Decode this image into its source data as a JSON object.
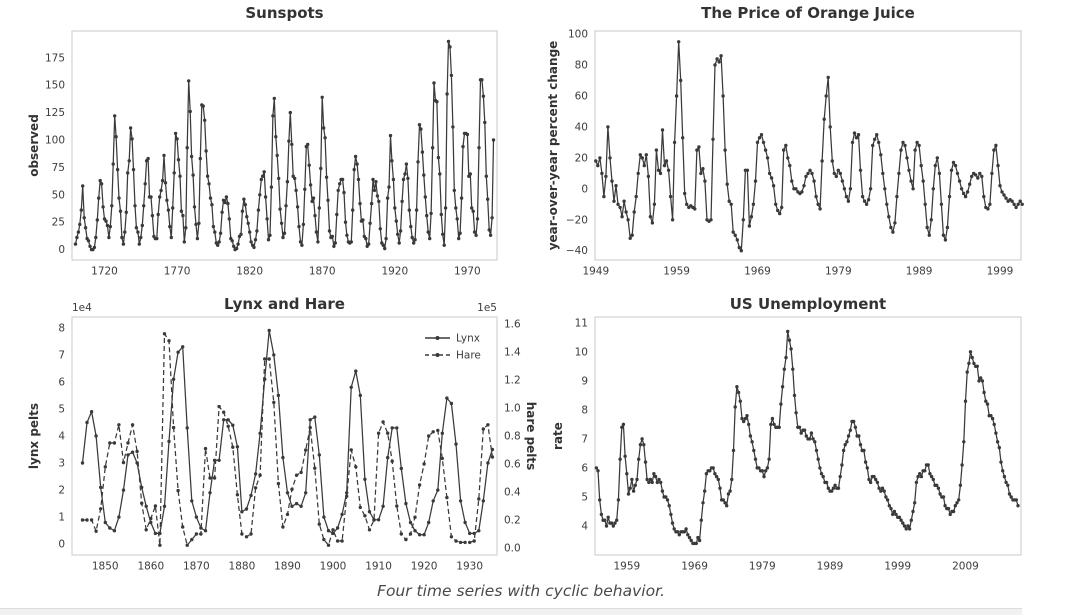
{
  "figure": {
    "caption": "Four time series with cyclic behavior."
  },
  "style": {
    "line_color": "#3a3a3a",
    "spine_color": "#c9c9c9",
    "tick_label_color": "#3d3d3d",
    "label_color": "#333333",
    "caption_color": "#4a4a4a",
    "background": "#ffffff"
  },
  "chart_data": [
    {
      "id": "sunspots",
      "type": "line",
      "title": "Sunspots",
      "xlabel": "",
      "ylabel": "observed",
      "grid": false,
      "legend": null,
      "xlim": [
        1697.6,
        1990.4
      ],
      "ylim": [
        -9.5,
        199.5
      ],
      "xticks": [
        1720,
        1770,
        1820,
        1870,
        1920,
        1970
      ],
      "yticks": [
        0,
        25,
        50,
        75,
        100,
        125,
        150,
        175
      ],
      "series": [
        {
          "name": "observed",
          "style": "solid",
          "axis": "left",
          "x0": 1700,
          "dx": 1,
          "values": [
            5,
            11,
            16,
            23,
            36,
            58,
            29,
            20,
            10,
            8,
            3,
            0,
            0,
            2,
            11,
            27,
            47,
            63,
            60,
            39,
            28,
            26,
            22,
            11,
            21,
            40,
            78,
            122,
            103,
            73,
            47,
            35,
            11,
            5,
            16,
            34,
            70,
            81,
            111,
            101,
            73,
            40,
            20,
            16,
            5,
            11,
            22,
            40,
            60,
            81,
            83,
            48,
            48,
            31,
            12,
            10,
            10,
            32,
            48,
            54,
            63,
            86,
            61,
            45,
            36,
            21,
            11,
            38,
            70,
            106,
            101,
            82,
            67,
            35,
            31,
            7,
            20,
            93,
            154,
            126,
            85,
            68,
            39,
            23,
            10,
            24,
            83,
            132,
            131,
            118,
            90,
            67,
            60,
            47,
            41,
            21,
            16,
            6,
            4,
            7,
            15,
            34,
            45,
            43,
            48,
            42,
            28,
            10,
            8,
            3,
            0,
            1,
            5,
            12,
            14,
            35,
            46,
            41,
            30,
            24,
            16,
            7,
            4,
            2,
            9,
            17,
            36,
            50,
            64,
            67,
            71,
            48,
            28,
            9,
            13,
            57,
            122,
            138,
            103,
            86,
            65,
            37,
            24,
            11,
            15,
            40,
            62,
            99,
            125,
            96,
            67,
            65,
            54,
            39,
            21,
            7,
            4,
            23,
            55,
            94,
            96,
            77,
            59,
            44,
            47,
            31,
            16,
            7,
            38,
            74,
            139,
            111,
            102,
            66,
            45,
            17,
            11,
            12,
            3,
            6,
            32,
            54,
            60,
            64,
            64,
            52,
            25,
            13,
            7,
            6,
            7,
            36,
            73,
            85,
            78,
            64,
            42,
            26,
            27,
            12,
            10,
            3,
            5,
            24,
            42,
            64,
            54,
            62,
            49,
            44,
            19,
            6,
            4,
            1,
            10,
            47,
            57,
            104,
            81,
            64,
            38,
            26,
            14,
            6,
            17,
            44,
            64,
            69,
            78,
            65,
            36,
            21,
            11,
            6,
            9,
            36,
            80,
            114,
            110,
            89,
            68,
            48,
            31,
            16,
            10,
            33,
            93,
            152,
            136,
            135,
            84,
            69,
            32,
            14,
            4,
            38,
            142,
            190,
            185,
            159,
            112,
            54,
            38,
            28,
            10,
            15,
            47,
            94,
            106,
            106,
            105,
            67,
            69,
            38,
            35,
            16,
            13,
            28,
            93,
            155,
            155,
            140,
            116,
            67,
            46,
            18,
            13,
            29,
            100
          ]
        }
      ]
    },
    {
      "id": "orange-juice",
      "type": "line",
      "title": "The Price of Orange Juice",
      "xlabel": "",
      "ylabel": "year-over-year percent change",
      "grid": false,
      "legend": null,
      "xlim": [
        1948.9,
        2001.6
      ],
      "ylim": [
        -46,
        102
      ],
      "xticks": [
        1949,
        1959,
        1969,
        1979,
        1989,
        1999
      ],
      "yticks": [
        -40,
        -20,
        0,
        20,
        40,
        60,
        80,
        100
      ],
      "series": [
        {
          "name": "yoy-percent-change",
          "style": "solid",
          "axis": "left",
          "x0": 1949,
          "dx": 0.25,
          "values": [
            18,
            15,
            20,
            10,
            -5,
            8,
            40,
            20,
            5,
            -8,
            2,
            -10,
            -12,
            -18,
            -8,
            -15,
            -20,
            -32,
            -30,
            -15,
            -5,
            10,
            22,
            20,
            15,
            22,
            8,
            -18,
            -22,
            -10,
            25,
            12,
            10,
            38,
            15,
            18,
            12,
            -5,
            -20,
            30,
            60,
            95,
            70,
            33,
            -3,
            -10,
            -12,
            -11,
            -12,
            -13,
            25,
            27,
            10,
            13,
            5,
            -20,
            -21,
            -20,
            32,
            80,
            84,
            82,
            86,
            60,
            25,
            3,
            -8,
            -10,
            -28,
            -30,
            -33,
            -38,
            -40,
            -20,
            12,
            12,
            -24,
            -18,
            -10,
            5,
            30,
            33,
            35,
            30,
            25,
            20,
            10,
            7,
            2,
            -10,
            -14,
            -16,
            -12,
            25,
            28,
            20,
            15,
            5,
            0,
            0,
            -2,
            -3,
            -2,
            2,
            8,
            10,
            12,
            10,
            5,
            -5,
            -10,
            -13,
            18,
            45,
            60,
            72,
            40,
            18,
            10,
            8,
            12,
            10,
            5,
            0,
            -5,
            -8,
            0,
            30,
            36,
            33,
            35,
            12,
            -5,
            -8,
            -10,
            -7,
            0,
            28,
            32,
            35,
            30,
            22,
            10,
            0,
            -10,
            -18,
            -25,
            -28,
            -22,
            -5,
            10,
            25,
            30,
            28,
            20,
            12,
            5,
            0,
            25,
            30,
            28,
            15,
            5,
            -10,
            -25,
            -30,
            -20,
            0,
            15,
            20,
            10,
            -10,
            -30,
            -33,
            -25,
            -5,
            12,
            17,
            15,
            10,
            5,
            0,
            -3,
            -5,
            -2,
            3,
            8,
            10,
            9,
            7,
            10,
            8,
            -5,
            -12,
            -13,
            -10,
            10,
            25,
            28,
            15,
            2,
            -2,
            -4,
            -6,
            -8,
            -7,
            -8,
            -10,
            -12,
            -10,
            -8,
            -10
          ]
        }
      ]
    },
    {
      "id": "lynx-hare",
      "type": "line",
      "title": "Lynx and Hare",
      "xlabel": "",
      "ylabel": "lynx pelts",
      "ylabel_right": "hare pelts",
      "offset_left": "1e4",
      "offset_right": "1e5",
      "grid": false,
      "legend": {
        "loc": "upper right",
        "items": [
          {
            "label": "Lynx",
            "style": "solid"
          },
          {
            "label": "Hare",
            "style": "dashed"
          }
        ]
      },
      "xlim": [
        1842.7,
        1936.0
      ],
      "ylim": [
        -0.4,
        8.4
      ],
      "ylim_right": [
        -0.05,
        1.65
      ],
      "xticks": [
        1850,
        1860,
        1870,
        1880,
        1890,
        1900,
        1910,
        1920,
        1930
      ],
      "yticks": [
        0,
        1,
        2,
        3,
        4,
        5,
        6,
        7,
        8
      ],
      "yticks_right": [
        0.0,
        0.2,
        0.4,
        0.6,
        0.8,
        1.0,
        1.2,
        1.4,
        1.6
      ],
      "yticks_right_labels": [
        "0.0",
        "0.2",
        "0.4",
        "0.6",
        "0.8",
        "1.0",
        "1.2",
        "1.4",
        "1.6"
      ],
      "series": [
        {
          "name": "Lynx",
          "style": "solid",
          "axis": "left",
          "x0": 1845,
          "dx": 1,
          "values": [
            3.0,
            4.5,
            4.9,
            4.0,
            2.1,
            0.8,
            0.6,
            0.5,
            1.0,
            2.0,
            3.3,
            3.4,
            3.0,
            2.1,
            1.4,
            0.8,
            0.4,
            0.4,
            1.4,
            3.8,
            6.1,
            7.1,
            7.3,
            4.3,
            1.6,
            1.0,
            0.6,
            0.5,
            1.9,
            3.1,
            3.1,
            4.6,
            4.6,
            4.4,
            3.6,
            1.2,
            1.3,
            1.8,
            2.6,
            4.1,
            6.1,
            7.9,
            7.0,
            5.5,
            3.2,
            1.9,
            1.4,
            1.5,
            1.4,
            1.9,
            4.6,
            4.7,
            3.3,
            1.0,
            0.5,
            0.4,
            0.6,
            1.1,
            1.9,
            5.8,
            6.4,
            5.5,
            2.4,
            1.2,
            0.9,
            0.9,
            1.4,
            3.2,
            4.3,
            4.3,
            2.8,
            1.5,
            0.8,
            0.5,
            0.35,
            0.35,
            0.8,
            1.6,
            2.0,
            4.1,
            5.4,
            5.2,
            3.7,
            1.6,
            0.8,
            0.4,
            0.4,
            0.5,
            1.6,
            3.0,
            3.5
          ]
        },
        {
          "name": "Hare",
          "style": "dashed",
          "axis": "right",
          "x0": 1845,
          "dx": 1,
          "values": [
            0.2,
            0.2,
            0.2,
            0.12,
            0.28,
            0.58,
            0.75,
            0.75,
            0.88,
            0.61,
            0.75,
            0.88,
            0.69,
            0.32,
            0.13,
            0.21,
            0.3,
            0.02,
            1.53,
            1.48,
            0.86,
            0.41,
            0.15,
            0.02,
            0.06,
            0.1,
            0.1,
            0.71,
            0.5,
            0.5,
            1.01,
            0.97,
            0.87,
            0.72,
            0.38,
            0.1,
            0.08,
            0.1,
            0.43,
            0.52,
            1.35,
            1.35,
            1.04,
            0.46,
            0.15,
            0.24,
            0.42,
            0.52,
            0.54,
            0.7,
            0.86,
            0.57,
            0.17,
            0.06,
            0.02,
            0.13,
            0.05,
            0.05,
            0.37,
            0.7,
            0.58,
            0.29,
            0.23,
            0.13,
            0.2,
            0.82,
            0.9,
            0.82,
            0.62,
            0.3,
            0.1,
            0.06,
            0.1,
            0.22,
            0.45,
            0.6,
            0.8,
            0.83,
            0.84,
            0.64,
            0.36,
            0.08,
            0.05,
            0.04,
            0.04,
            0.04,
            0.05,
            0.35,
            0.85,
            0.88,
            0.65
          ]
        }
      ]
    },
    {
      "id": "us-unemployment",
      "type": "line",
      "title": "US Unemployment",
      "xlabel": "",
      "ylabel": "rate",
      "grid": false,
      "legend": null,
      "xlim": [
        1954.3,
        2017.2
      ],
      "ylim": [
        3.0,
        11.2
      ],
      "xticks": [
        1959,
        1969,
        1979,
        1989,
        1999,
        2009
      ],
      "yticks": [
        4,
        5,
        6,
        7,
        8,
        9,
        10,
        11
      ],
      "series": [
        {
          "name": "rate",
          "style": "solid",
          "axis": "left",
          "x0": 1954.5,
          "dx": 0.25,
          "values": [
            6.0,
            5.9,
            4.9,
            4.4,
            4.2,
            4.2,
            4.0,
            4.3,
            4.1,
            4.1,
            4.0,
            4.1,
            4.2,
            4.9,
            6.3,
            7.4,
            7.5,
            6.4,
            5.8,
            5.1,
            5.3,
            5.6,
            5.2,
            5.4,
            5.6,
            6.3,
            6.8,
            7.0,
            6.8,
            6.2,
            5.6,
            5.5,
            5.6,
            5.5,
            5.8,
            5.7,
            5.5,
            5.6,
            5.5,
            5.2,
            5.0,
            5.0,
            4.9,
            4.7,
            4.4,
            4.1,
            3.9,
            3.8,
            3.8,
            3.7,
            3.8,
            3.8,
            3.8,
            3.9,
            3.7,
            3.6,
            3.5,
            3.4,
            3.4,
            3.4,
            3.6,
            3.5,
            4.2,
            4.8,
            5.2,
            5.8,
            5.9,
            5.9,
            6.0,
            6.0,
            5.8,
            5.7,
            5.6,
            5.3,
            4.9,
            4.9,
            4.8,
            4.7,
            5.1,
            5.2,
            5.6,
            6.6,
            8.1,
            8.8,
            8.6,
            8.3,
            7.7,
            7.6,
            7.7,
            7.8,
            7.5,
            7.1,
            6.9,
            6.6,
            6.3,
            6.0,
            6.0,
            5.9,
            5.9,
            5.7,
            5.9,
            6.0,
            6.3,
            7.5,
            7.7,
            7.5,
            7.4,
            7.4,
            7.4,
            8.2,
            8.8,
            9.4,
            9.8,
            10.7,
            10.4,
            10.1,
            9.4,
            8.5,
            7.9,
            7.4,
            7.4,
            7.2,
            7.3,
            7.3,
            7.1,
            7.0,
            7.0,
            7.2,
            7.0,
            6.9,
            6.6,
            6.3,
            6.0,
            5.8,
            5.7,
            5.5,
            5.5,
            5.3,
            5.2,
            5.2,
            5.3,
            5.4,
            5.3,
            5.3,
            5.7,
            6.1,
            6.6,
            6.8,
            6.9,
            7.1,
            7.3,
            7.6,
            7.6,
            7.4,
            7.1,
            7.1,
            6.8,
            6.6,
            6.6,
            6.2,
            6.0,
            5.6,
            5.5,
            5.7,
            5.7,
            5.6,
            5.5,
            5.3,
            5.2,
            5.3,
            5.2,
            5.0,
            4.9,
            4.7,
            4.6,
            4.4,
            4.5,
            4.4,
            4.3,
            4.3,
            4.2,
            4.1,
            4.0,
            3.9,
            4.0,
            3.9,
            4.2,
            4.5,
            4.8,
            5.5,
            5.7,
            5.8,
            5.7,
            5.9,
            5.9,
            6.1,
            6.1,
            5.8,
            5.7,
            5.6,
            5.4,
            5.4,
            5.3,
            5.1,
            5.0,
            5.0,
            4.7,
            4.6,
            4.6,
            4.4,
            4.5,
            4.5,
            4.7,
            4.8,
            4.9,
            5.4,
            6.1,
            6.9,
            8.3,
            9.3,
            9.6,
            10.0,
            9.8,
            9.6,
            9.5,
            9.5,
            9.0,
            9.1,
            9.0,
            8.6,
            8.3,
            8.2,
            7.8,
            7.8,
            7.7,
            7.5,
            7.2,
            6.9,
            6.7,
            6.2,
            5.9,
            5.7,
            5.5,
            5.4,
            5.1,
            5.0,
            4.9,
            4.9,
            4.9,
            4.7
          ]
        }
      ]
    }
  ]
}
